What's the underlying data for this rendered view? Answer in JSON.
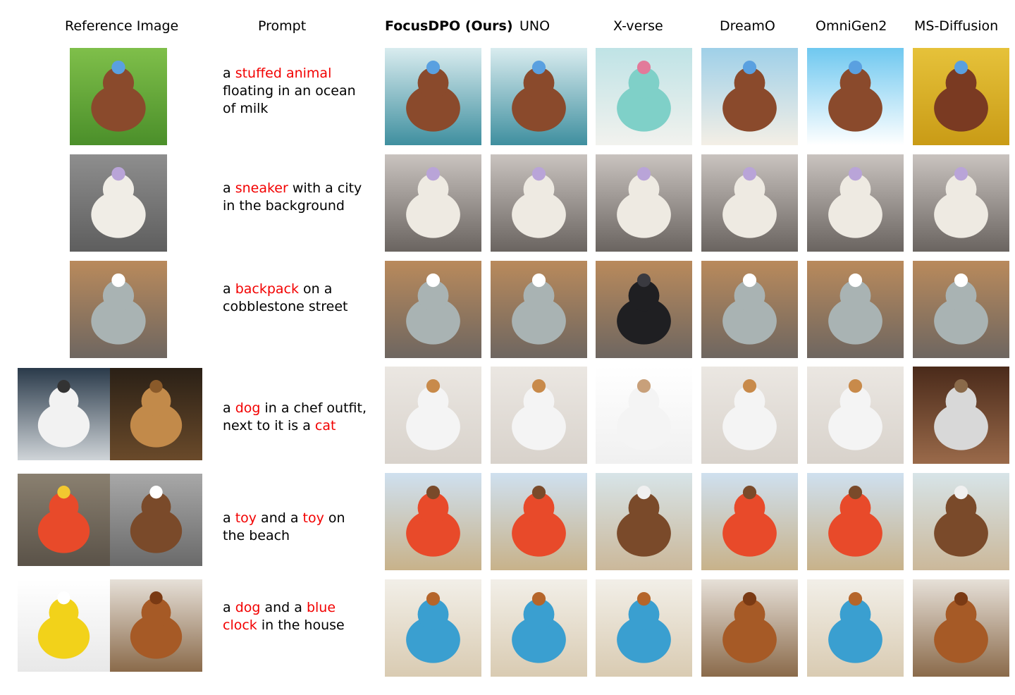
{
  "headers": {
    "reference": "Reference Image",
    "prompt": "Prompt",
    "methods": [
      "FocusDPO (Ours)",
      "UNO",
      "X-verse",
      "DreamO",
      "OmniGen2",
      "MS-Diffusion"
    ]
  },
  "rows": [
    {
      "prompt": [
        {
          "t": "a "
        },
        {
          "t": "stuffed animal",
          "hl": true
        },
        {
          "t": "\nfloating in an ocean\nof milk"
        }
      ],
      "references": [
        "brown teddy bear with blue hat on grass"
      ],
      "outputs": [
        "teddy bear in water",
        "teddy bear in water",
        "cartoon pig in milk",
        "teddy bear in milk",
        "teddy bear on milk splash",
        "teddy bear in yellow liquid"
      ]
    },
    {
      "prompt": [
        {
          "t": "a "
        },
        {
          "t": "sneaker",
          "hl": true
        },
        {
          "t": " with a city\nin the background"
        }
      ],
      "references": [
        "pastel sneaker on asphalt"
      ],
      "outputs": [
        "sneaker with skyline",
        "sneaker with skyline",
        "sneaker with skyline",
        "sneaker with skyline",
        "sneaker with skyline",
        "sneaker with skyline"
      ]
    },
    {
      "prompt": [
        {
          "t": "a "
        },
        {
          "t": "backpack",
          "hl": true
        },
        {
          "t": " on a\ncobblestone street"
        }
      ],
      "references": [
        "dog face backpack on chair"
      ],
      "outputs": [
        "backpack on street",
        "backpack on street",
        "black backpack on street",
        "backpack on street",
        "backpack on street",
        "backpack on table"
      ]
    },
    {
      "prompt": [
        {
          "t": "a "
        },
        {
          "t": "dog",
          "hl": true
        },
        {
          "t": " in a chef outfit,\nnext to it is a "
        },
        {
          "t": "cat",
          "hl": true
        }
      ],
      "references": [
        "border collie",
        "tabby cat"
      ],
      "outputs": [
        "chef dog with cat",
        "chef cat with cat",
        "two dogs",
        "chef dog with cat",
        "chef dog with cat",
        "dog with cat"
      ]
    },
    {
      "prompt": [
        {
          "t": "a "
        },
        {
          "t": "toy",
          "hl": true
        },
        {
          "t": " and a "
        },
        {
          "t": "toy",
          "hl": true
        },
        {
          "t": " on\nthe beach"
        }
      ],
      "references": [
        "toy car with driver",
        "poop plush toy"
      ],
      "outputs": [
        "toys on beach",
        "toys on beach",
        "poop toy on beach",
        "toys on beach",
        "toy car on beach",
        "toy car on beach"
      ]
    },
    {
      "prompt": [
        {
          "t": "a "
        },
        {
          "t": "dog",
          "hl": true
        },
        {
          "t": " and a "
        },
        {
          "t": "blue",
          "hl": true
        },
        {
          "t": "\n"
        },
        {
          "t": "clock",
          "hl": true
        },
        {
          "t": " in the house"
        }
      ],
      "references": [
        "yellow alarm clock",
        "chow chow dog"
      ],
      "outputs": [
        "dog with blue clock",
        "dog with blue clock",
        "dog with blue clock",
        "dog with blue clock",
        "dog with blue clock",
        "dog with yellow clock"
      ]
    }
  ],
  "colors": {
    "highlight": "#f20000",
    "text": "#000000"
  }
}
